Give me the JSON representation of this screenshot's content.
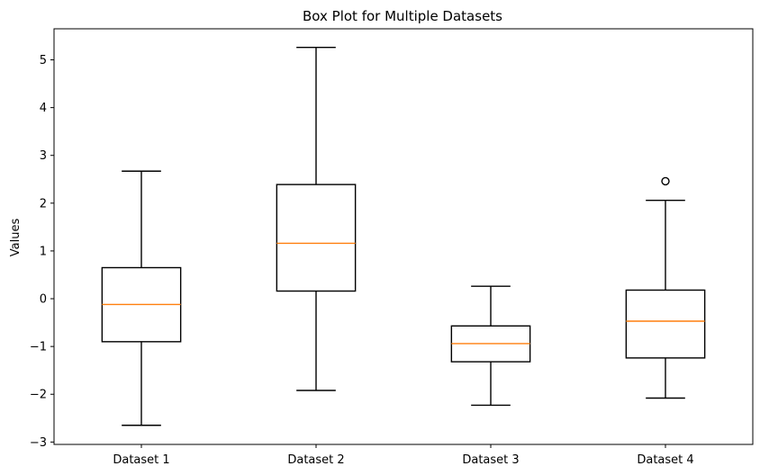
{
  "chart_data": {
    "type": "boxplot",
    "title": "Box Plot for Multiple Datasets",
    "xlabel": "",
    "ylabel": "Values",
    "ylim": [
      -3.05,
      5.65
    ],
    "yticks": [
      -3,
      -2,
      -1,
      0,
      1,
      2,
      3,
      4,
      5
    ],
    "ytick_labels": [
      "−3",
      "−2",
      "−1",
      "0",
      "1",
      "2",
      "3",
      "4",
      "5"
    ],
    "categories": [
      "Dataset 1",
      "Dataset 2",
      "Dataset 3",
      "Dataset 4"
    ],
    "boxes": [
      {
        "name": "Dataset 1",
        "whisker_low": -2.65,
        "q1": -0.9,
        "median": -0.12,
        "q3": 0.65,
        "whisker_high": 2.67,
        "fliers": []
      },
      {
        "name": "Dataset 2",
        "whisker_low": -1.92,
        "q1": 0.16,
        "median": 1.16,
        "q3": 2.39,
        "whisker_high": 5.26,
        "fliers": []
      },
      {
        "name": "Dataset 3",
        "whisker_low": -2.23,
        "q1": -1.32,
        "median": -0.94,
        "q3": -0.57,
        "whisker_high": 0.26,
        "fliers": []
      },
      {
        "name": "Dataset 4",
        "whisker_low": -2.08,
        "q1": -1.24,
        "median": -0.47,
        "q3": 0.18,
        "whisker_high": 2.06,
        "fliers": [
          2.46
        ]
      }
    ],
    "grid": false,
    "colors": {
      "box": "#000000",
      "median": "#ff7f0e"
    }
  }
}
